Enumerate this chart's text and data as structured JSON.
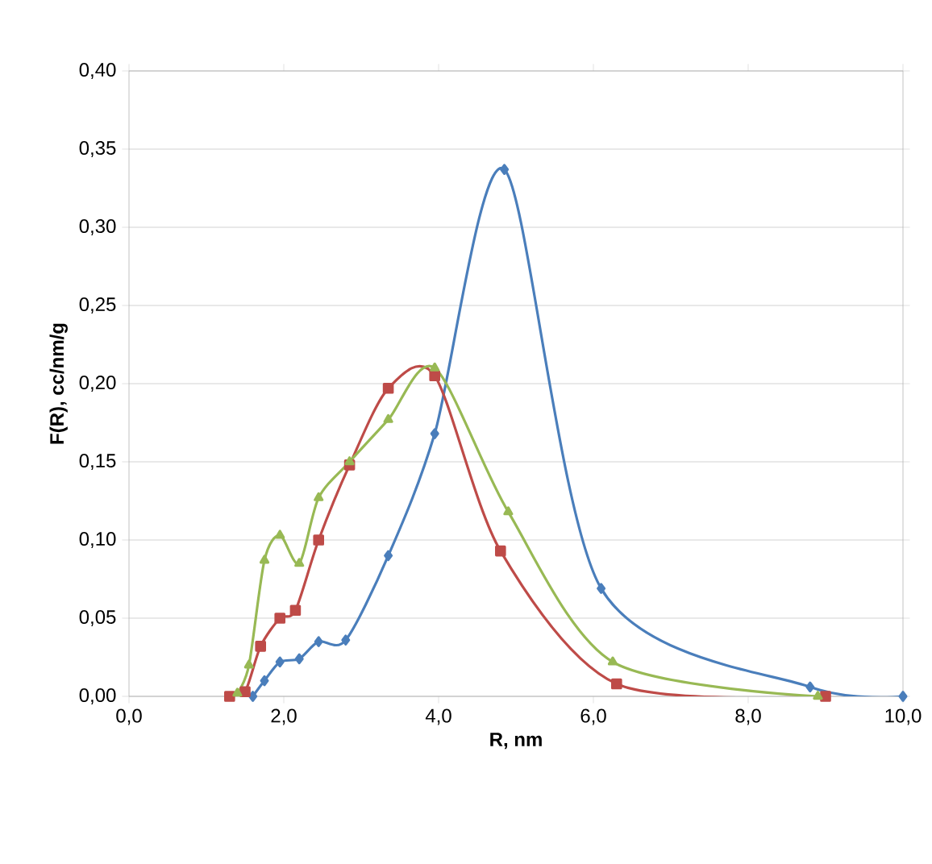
{
  "chart_data": {
    "type": "line",
    "xlabel": "R, nm",
    "ylabel": "F(R), cc/nm/g",
    "xlim": [
      0,
      10
    ],
    "ylim": [
      0,
      0.4
    ],
    "xticks": [
      {
        "value": 0,
        "label": "0,0"
      },
      {
        "value": 2,
        "label": "2,0"
      },
      {
        "value": 4,
        "label": "4,0"
      },
      {
        "value": 6,
        "label": "6,0"
      },
      {
        "value": 8,
        "label": "8,0"
      },
      {
        "value": 10,
        "label": "10,0"
      }
    ],
    "yticks": [
      {
        "value": 0,
        "label": "0,00"
      },
      {
        "value": 0.05,
        "label": "0,05"
      },
      {
        "value": 0.1,
        "label": "0,10"
      },
      {
        "value": 0.15,
        "label": "0,15"
      },
      {
        "value": 0.2,
        "label": "0,20"
      },
      {
        "value": 0.25,
        "label": "0,25"
      },
      {
        "value": 0.3,
        "label": "0,30"
      },
      {
        "value": 0.35,
        "label": "0,35"
      },
      {
        "value": 0.4,
        "label": "0,40"
      }
    ],
    "grid": "y",
    "series": [
      {
        "color": "#4a7ebb",
        "marker": "diamond",
        "x": [
          1.6,
          1.75,
          1.95,
          2.2,
          2.45,
          2.8,
          3.35,
          3.95,
          4.85,
          6.1,
          8.8,
          10
        ],
        "values": [
          0.0,
          0.01,
          0.022,
          0.024,
          0.035,
          0.036,
          0.09,
          0.168,
          0.337,
          0.069,
          0.006,
          0.0
        ]
      },
      {
        "color": "#be4b48",
        "marker": "square",
        "x": [
          1.3,
          1.5,
          1.7,
          1.95,
          2.15,
          2.45,
          2.85,
          3.35,
          3.95,
          4.8,
          6.3,
          9.0
        ],
        "values": [
          0.0,
          0.003,
          0.032,
          0.05,
          0.055,
          0.1,
          0.148,
          0.197,
          0.205,
          0.093,
          0.008,
          0.0
        ]
      },
      {
        "color": "#98b954",
        "marker": "triangle",
        "x": [
          1.4,
          1.55,
          1.75,
          1.95,
          2.2,
          2.45,
          2.85,
          3.35,
          3.95,
          4.9,
          6.25,
          8.9
        ],
        "values": [
          0.002,
          0.02,
          0.087,
          0.103,
          0.085,
          0.127,
          0.15,
          0.177,
          0.21,
          0.118,
          0.022,
          0.0
        ]
      }
    ]
  }
}
